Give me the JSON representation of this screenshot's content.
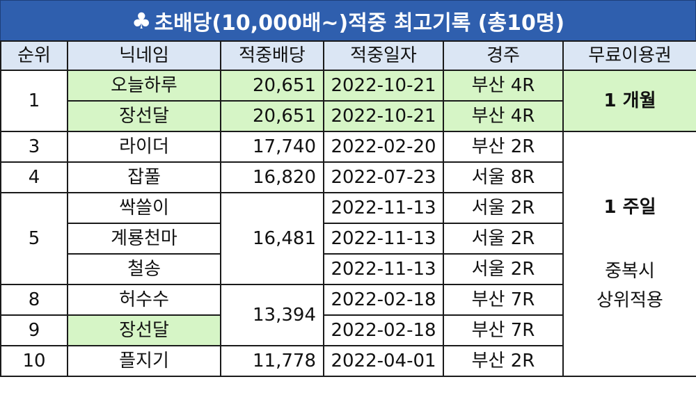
{
  "title": {
    "icon": "club-suit-icon",
    "symbol": "♣",
    "text": "초배당(10,000배~)적중 최고기록 (총10명)"
  },
  "headers": [
    "순위",
    "닉네임",
    "적중배당",
    "적중일자",
    "경주",
    "무료이용권"
  ],
  "rows": {
    "r1": {
      "rank": "1",
      "nick": "오늘하루",
      "odds": "20,651",
      "date": "2022-10-21",
      "race": "부산 4R"
    },
    "r2": {
      "nick": "장선달",
      "odds": "20,651",
      "date": "2022-10-21",
      "race": "부산 4R"
    },
    "r3": {
      "rank": "3",
      "nick": "라이더",
      "odds": "17,740",
      "date": "2022-02-20",
      "race": "부산 2R"
    },
    "r4": {
      "rank": "4",
      "nick": "잡풀",
      "odds": "16,820",
      "date": "2022-07-23",
      "race": "서울 8R"
    },
    "r5": {
      "nick": "싹쓸이",
      "date": "2022-11-13",
      "race": "서울 2R"
    },
    "r6": {
      "rank": "5",
      "nick": "계룡천마",
      "odds": "16,481",
      "date": "2022-11-13",
      "race": "서울 2R"
    },
    "r7": {
      "nick": "철송",
      "date": "2022-11-13",
      "race": "서울 2R"
    },
    "r8": {
      "rank": "8",
      "nick": "허수수",
      "odds": "13,394",
      "date": "2022-02-18",
      "race": "부산 7R"
    },
    "r9": {
      "rank": "9",
      "nick": "장선달",
      "date": "2022-02-18",
      "race": "부산 7R"
    },
    "r10": {
      "rank": "10",
      "nick": "플지기",
      "odds": "11,778",
      "date": "2022-04-01",
      "race": "부산 2R"
    }
  },
  "tickets": {
    "month": "1 개월",
    "week": "1 주일",
    "note_line1": "중복시",
    "note_line2": "상위적용"
  },
  "colors": {
    "title_bg": "#2f5fae",
    "header_bg": "#dbe6f4",
    "highlight_green": "#d6f5c6"
  }
}
